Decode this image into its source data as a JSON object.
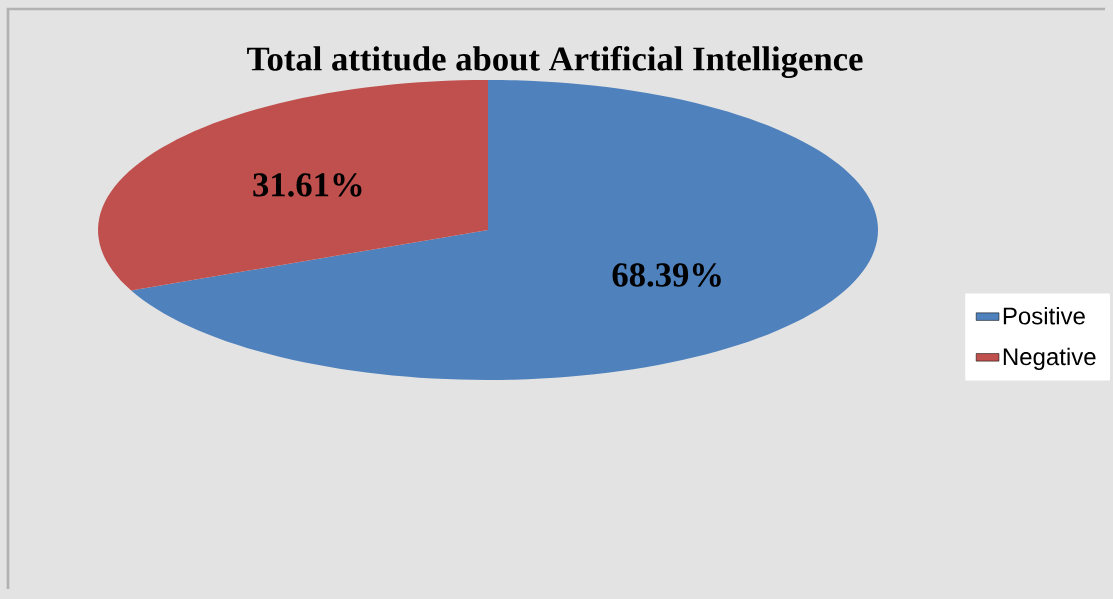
{
  "chart_data": {
    "type": "pie",
    "title": "Total attitude about Artificial Intelligence",
    "categories": [
      "Positive",
      "Negative"
    ],
    "values": [
      68.39,
      31.61
    ],
    "value_labels": [
      "68.39%",
      "31.61%"
    ],
    "colors": [
      "#4f81bd",
      "#c0504d"
    ],
    "legend": "right"
  }
}
